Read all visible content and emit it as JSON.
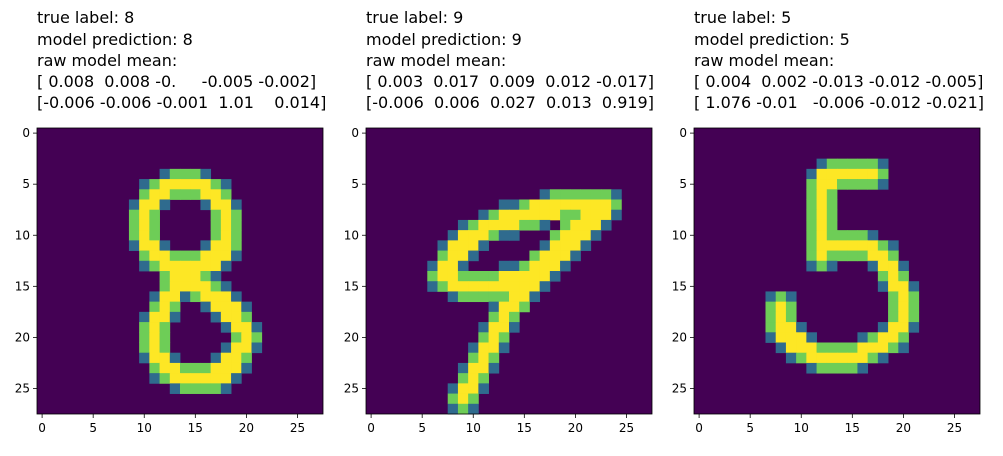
{
  "chart_data": [
    {
      "type": "heatmap",
      "title_lines": [
        "true label: 8",
        "model prediction: 8",
        "raw model mean:",
        "[ 0.008  0.008 -0.     -0.005 -0.002]",
        "[-0.006 -0.006 -0.001  1.01    0.014]"
      ],
      "xticks": [
        0,
        5,
        10,
        15,
        20,
        25
      ],
      "yticks": [
        0,
        5,
        10,
        15,
        20,
        25
      ],
      "xlim": [
        -0.5,
        27.5
      ],
      "ylim": [
        27.5,
        -0.5
      ],
      "colormap": "viridis",
      "grid_size": 28,
      "digit_strokes": [
        [
          [
            13,
            5
          ],
          [
            11,
            6
          ],
          [
            10,
            8
          ],
          [
            10,
            10
          ],
          [
            11,
            12
          ],
          [
            13,
            13
          ],
          [
            16,
            13
          ],
          [
            18,
            11
          ],
          [
            18,
            8
          ],
          [
            17,
            6
          ],
          [
            15,
            5
          ],
          [
            13,
            5
          ]
        ],
        [
          [
            13,
            13
          ],
          [
            13,
            15
          ],
          [
            12,
            17
          ],
          [
            11,
            19
          ],
          [
            11,
            21
          ],
          [
            12,
            23
          ],
          [
            14,
            24
          ],
          [
            17,
            24
          ],
          [
            19,
            22
          ],
          [
            20,
            20
          ],
          [
            19,
            18
          ],
          [
            17,
            16
          ],
          [
            15,
            15
          ],
          [
            14,
            14
          ],
          [
            13,
            13
          ]
        ]
      ]
    },
    {
      "type": "heatmap",
      "title_lines": [
        "true label: 9",
        "model prediction: 9",
        "raw model mean:",
        "[ 0.003  0.017  0.009  0.012 -0.017]",
        "[-0.006  0.006  0.027  0.013  0.919]"
      ],
      "xticks": [
        0,
        5,
        10,
        15,
        20,
        25
      ],
      "yticks": [
        0,
        5,
        10,
        15,
        20,
        25
      ],
      "xlim": [
        -0.5,
        27.5
      ],
      "ylim": [
        27.5,
        -0.5
      ],
      "colormap": "viridis",
      "grid_size": 28,
      "digit_strokes": [
        [
          [
            23,
            7
          ],
          [
            19,
            7
          ],
          [
            15,
            8
          ],
          [
            12,
            9
          ],
          [
            10,
            10
          ],
          [
            8,
            12
          ],
          [
            7,
            14
          ],
          [
            9,
            15
          ],
          [
            12,
            15
          ],
          [
            15,
            14
          ],
          [
            18,
            12
          ],
          [
            21,
            9
          ],
          [
            23,
            7
          ]
        ],
        [
          [
            21,
            8
          ],
          [
            18,
            12
          ],
          [
            15,
            15
          ],
          [
            13,
            18
          ],
          [
            12,
            20
          ],
          [
            11,
            22
          ],
          [
            10,
            24
          ],
          [
            9,
            26
          ]
        ]
      ]
    },
    {
      "type": "heatmap",
      "title_lines": [
        "true label: 5",
        "model prediction: 5",
        "raw model mean:",
        "[ 0.004  0.002 -0.013 -0.012 -0.005]",
        "[ 1.076 -0.01   -0.006 -0.012 -0.021]"
      ],
      "xticks": [
        0,
        5,
        10,
        15,
        20,
        25
      ],
      "yticks": [
        0,
        5,
        10,
        15,
        20,
        25
      ],
      "xlim": [
        -0.5,
        27.5
      ],
      "ylim": [
        27.5,
        -0.5
      ],
      "colormap": "viridis",
      "grid_size": 28,
      "digit_strokes": [
        [
          [
            17,
            4
          ],
          [
            15,
            4
          ],
          [
            13,
            4
          ],
          [
            12,
            5
          ],
          [
            12,
            7
          ]
        ],
        [
          [
            12,
            5
          ],
          [
            12,
            8
          ],
          [
            12,
            10
          ],
          [
            12,
            12
          ]
        ],
        [
          [
            12,
            11
          ],
          [
            14,
            11
          ],
          [
            16,
            11
          ],
          [
            18,
            12
          ],
          [
            19,
            14
          ],
          [
            20,
            16
          ],
          [
            20,
            18
          ],
          [
            19,
            20
          ],
          [
            17,
            21
          ],
          [
            15,
            22
          ],
          [
            12,
            22
          ],
          [
            10,
            21
          ],
          [
            9,
            20
          ],
          [
            8,
            19
          ],
          [
            8,
            18
          ],
          [
            8,
            17
          ]
        ]
      ]
    }
  ]
}
